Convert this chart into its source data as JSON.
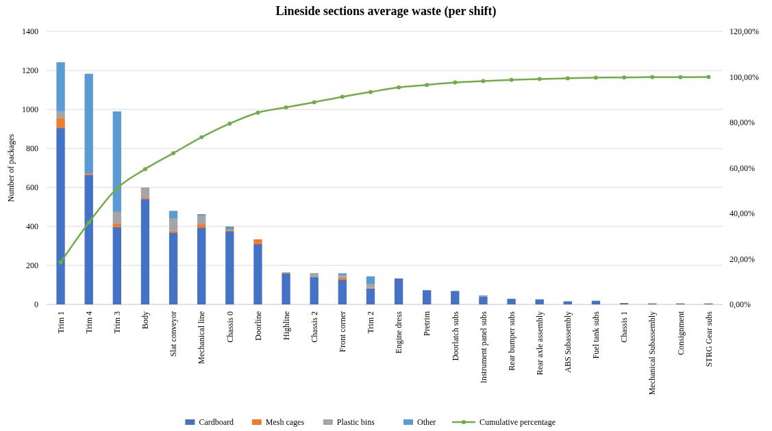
{
  "chart_data": {
    "type": "bar",
    "title": "Lineside sections average waste (per shift)",
    "ylabel": "Number of packages",
    "stacked": true,
    "grid": "y",
    "legend": "bottom",
    "categories": [
      "Trim 1",
      "Trim 4",
      "Trim 3",
      "Body",
      "Slat conveyor",
      "Mechanical line",
      "Chassis 0",
      "Doorline",
      "Highline",
      "Chassis 2",
      "Front corner",
      "Trim 2",
      "Engine dress",
      "Pretrim",
      "Doorlatch subs",
      "Instrument panel subs",
      "Rear bumper subs",
      "Rear axle assembly",
      "ABS Subassembly",
      "Fuel tank subs",
      "Chassis 1",
      "Mechanical Subassembly",
      "Consignment",
      "STRG Gear subs"
    ],
    "ylim": [
      0,
      1400
    ],
    "yticks": [
      0,
      200,
      400,
      600,
      800,
      1000,
      1200,
      1400
    ],
    "y2lim": [
      0,
      120
    ],
    "y2ticks": [
      {
        "value": 0,
        "label": "0,00%"
      },
      {
        "value": 20,
        "label": "20,00%"
      },
      {
        "value": 40,
        "label": "40,00%"
      },
      {
        "value": 60,
        "label": "60,00%"
      },
      {
        "value": 80,
        "label": "80,00%"
      },
      {
        "value": 100,
        "label": "100,00%"
      },
      {
        "value": 120,
        "label": "120,00%"
      }
    ],
    "series": [
      {
        "name": "Cardboard",
        "color": "#4472c4",
        "values": [
          905,
          665,
          397,
          540,
          368,
          393,
          375,
          309,
          158,
          140,
          126,
          82,
          133,
          73,
          69,
          41,
          29,
          26,
          16,
          19,
          7,
          5,
          5,
          5
        ]
      },
      {
        "name": "Mesh cages",
        "color": "#ed7d31",
        "values": [
          50,
          8,
          17,
          7,
          8,
          18,
          7,
          25,
          3,
          0,
          12,
          3,
          0,
          0,
          0,
          0,
          0,
          0,
          0,
          0,
          0,
          0,
          0,
          0
        ]
      },
      {
        "name": "Plastic bins",
        "color": "#a5a5a5",
        "values": [
          35,
          0,
          60,
          53,
          66,
          45,
          4,
          null,
          4,
          21,
          13,
          20,
          0,
          0,
          0,
          6,
          null,
          0,
          0,
          0,
          0,
          0,
          0,
          0
        ]
      },
      {
        "name": "Other",
        "color": "#5b9bd5",
        "values": [
          252,
          510,
          516,
          0,
          38,
          7,
          14,
          0,
          0,
          0,
          9,
          39,
          0,
          0,
          0,
          0,
          0,
          0,
          0,
          0,
          0,
          0,
          0,
          0
        ]
      },
      {
        "name": "Cumulative percentage",
        "type": "line",
        "axis": "y2",
        "color": "#70ad47",
        "marker": "circle",
        "values": [
          18.5,
          36,
          51,
          59.5,
          66.5,
          73.5,
          79.5,
          84.3,
          86.6,
          88.9,
          91.3,
          93.4,
          95.4,
          96.5,
          97.6,
          98.2,
          98.7,
          99.1,
          99.4,
          99.7,
          99.8,
          99.9,
          99.9,
          100
        ]
      }
    ]
  }
}
